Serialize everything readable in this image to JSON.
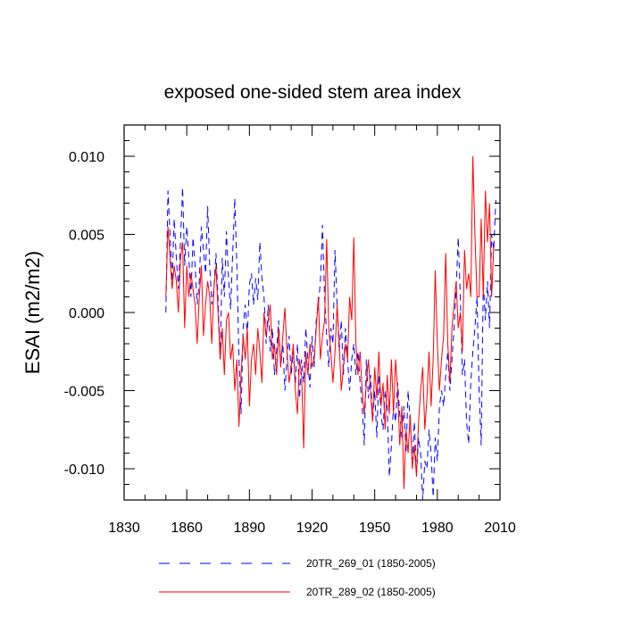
{
  "chart_data": {
    "type": "line",
    "title": "exposed one-sided stem area index",
    "xlabel": "",
    "ylabel": "ESAI  (m2/m2)",
    "xlim": [
      1830,
      2010
    ],
    "ylim": [
      -0.012,
      0.012
    ],
    "x_ticks": [
      1830,
      1860,
      1890,
      1920,
      1950,
      1980,
      2010
    ],
    "x_tick_labels": [
      "1830",
      "1860",
      "1890",
      "1920",
      "1950",
      "1980",
      "2010"
    ],
    "y_ticks": [
      -0.01,
      -0.005,
      0.0,
      0.005,
      0.01
    ],
    "y_tick_labels": [
      "-0.010",
      "-0.005",
      "0.000",
      "0.005",
      "0.010"
    ],
    "legend_position": "bottom",
    "x_start": 1850,
    "x_step": 1,
    "series": [
      {
        "name": "20TR_269_01 (1850-2005)",
        "color": "#0000ff",
        "dash": "dashed",
        "values": [
          0.0,
          0.0078,
          0.005,
          0.002,
          0.006,
          0.0035,
          0.0015,
          0.0045,
          0.008,
          0.003,
          0.0055,
          0.0035,
          0.001,
          0.0048,
          0.003,
          0.0005,
          0.002,
          0.0055,
          0.004,
          0.0025,
          0.0068,
          0.003,
          0.0005,
          0.0015,
          0.0038,
          0.0008,
          -0.003,
          0.0035,
          0.001,
          0.0052,
          0.0022,
          0.0002,
          0.0038,
          0.0073,
          0.003,
          -0.003,
          -0.0065,
          -0.001,
          0.0005,
          -0.0015,
          0.0018,
          0.0025,
          0.0005,
          0.0022,
          0.0008,
          0.0045,
          0.0022,
          0.001,
          -0.002,
          0.0005,
          -0.0025,
          -0.001,
          -0.004,
          -0.0025,
          -0.0005,
          -0.0035,
          -0.002,
          -0.005,
          -0.003,
          -0.0015,
          -0.004,
          -0.0025,
          -0.0045,
          -0.002,
          -0.0055,
          -0.003,
          -0.0045,
          -0.001,
          -0.003,
          -0.0048,
          -0.0015,
          -0.0035,
          -0.0005,
          0.0005,
          0.002,
          0.0056,
          0.001,
          -0.0015,
          -0.0035,
          -0.001,
          -0.002,
          0.004,
          0.0005,
          -0.0025,
          -0.0005,
          -0.004,
          -0.001,
          -0.003,
          -0.005,
          -0.003,
          -0.002,
          -0.004,
          -0.0025,
          -0.0045,
          -0.006,
          -0.0085,
          -0.003,
          -0.0055,
          -0.004,
          -0.007,
          -0.005,
          -0.008,
          -0.004,
          -0.0065,
          -0.0075,
          -0.005,
          -0.006,
          -0.0105,
          -0.0085,
          -0.006,
          -0.007,
          -0.0045,
          -0.0065,
          -0.008,
          -0.006,
          -0.009,
          -0.005,
          -0.007,
          -0.0095,
          -0.007,
          -0.0105,
          -0.008,
          -0.009,
          -0.012,
          -0.0095,
          -0.01,
          -0.0075,
          -0.009,
          -0.0118,
          -0.008,
          -0.0095,
          -0.006,
          -0.005,
          -0.006,
          -0.004,
          -0.0025,
          -0.005,
          -0.003,
          -0.001,
          0.0015,
          0.0048,
          0.001,
          -0.004,
          -0.003,
          -0.007,
          -0.0084,
          -0.0045,
          -0.0025,
          -0.001,
          0.001,
          -0.005,
          -0.0085,
          0.002,
          -0.0005,
          0.002,
          -0.001,
          0.005,
          0.004,
          0.0072
        ]
      },
      {
        "name": "20TR_289_02 (1850-2005)",
        "color": "#ff0000",
        "dash": "solid",
        "values": [
          0.001,
          0.0055,
          0.0035,
          0.0015,
          0.003,
          0.002,
          0.0,
          0.0035,
          0.0045,
          -0.001,
          0.003,
          0.001,
          0.0025,
          0.0015,
          0.0005,
          -0.002,
          0.001,
          0.003,
          -0.0015,
          0.0005,
          0.002,
          0.001,
          -0.002,
          0.0015,
          0.003,
          0.0,
          -0.003,
          -0.001,
          -0.004,
          -0.0005,
          0.0,
          -0.003,
          -0.002,
          -0.005,
          -0.003,
          -0.0073,
          -0.004,
          -0.0015,
          -0.003,
          -0.001,
          -0.006,
          -0.003,
          -0.002,
          -0.004,
          -0.001,
          -0.0025,
          -0.0045,
          0.0,
          -0.0015,
          -0.0005,
          0.0005,
          -0.003,
          -0.002,
          -0.004,
          -0.001,
          -0.0035,
          -0.0015,
          0.0003,
          -0.0025,
          -0.0045,
          -0.0035,
          -0.002,
          -0.005,
          -0.0065,
          -0.003,
          -0.004,
          -0.0087,
          -0.0025,
          -0.004,
          -0.002,
          -0.0035,
          -0.003,
          -0.001,
          0.001,
          -0.003,
          -0.0015,
          -0.0005,
          0.0047,
          -0.001,
          -0.0025,
          -0.0045,
          -0.0025,
          0.0005,
          -0.002,
          -0.005,
          -0.0035,
          -0.002,
          -0.003,
          0.001,
          -0.0005,
          0.0048,
          -0.002,
          -0.004,
          -0.0025,
          -0.005,
          -0.0065,
          -0.0045,
          -0.003,
          -0.005,
          -0.007,
          -0.0035,
          -0.0055,
          -0.0025,
          -0.006,
          -0.0045,
          -0.0075,
          -0.004,
          -0.0065,
          -0.003,
          -0.0065,
          -0.003,
          -0.005,
          -0.0085,
          -0.006,
          -0.0113,
          -0.0075,
          -0.009,
          -0.0065,
          -0.01,
          -0.0085,
          -0.0105,
          -0.007,
          -0.005,
          -0.0035,
          -0.0075,
          -0.0055,
          -0.0025,
          -0.006,
          -0.003,
          0.0027,
          -0.002,
          -0.005,
          -0.003,
          -0.0015,
          0.0038,
          -0.002,
          -0.0045,
          -0.001,
          0.0005,
          0.002,
          -0.001,
          0.0,
          -0.0025,
          0.004,
          0.0015,
          0.0025,
          0.001,
          0.01,
          0.005,
          0.001,
          0.001,
          0.006,
          0.001,
          0.0078,
          0.0045,
          0.007,
          0.001,
          0.0042
        ]
      }
    ]
  }
}
